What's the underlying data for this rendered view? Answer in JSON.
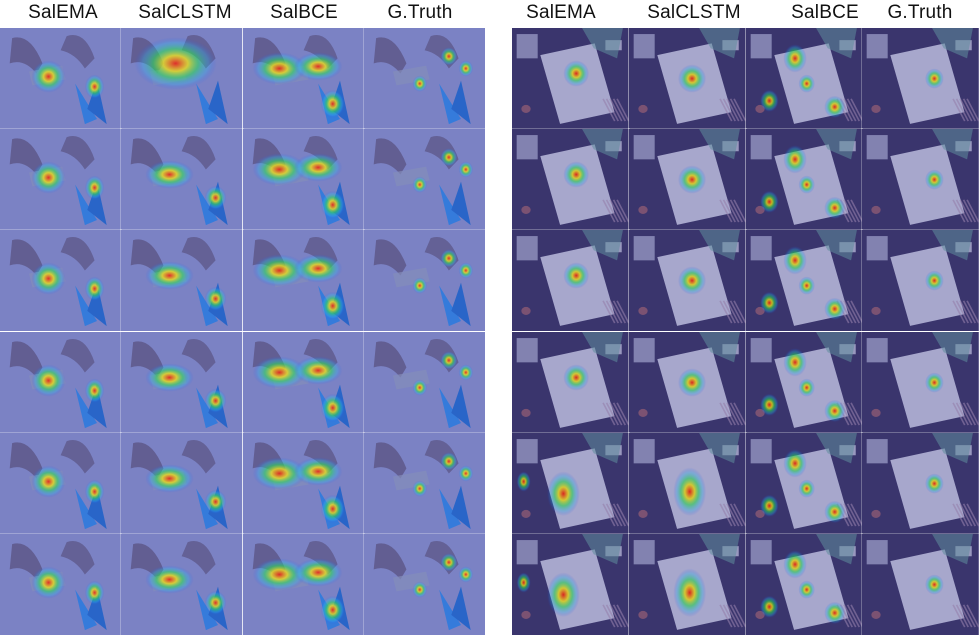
{
  "figure": {
    "left_panel": {
      "column_headers": [
        "SalEMA",
        "SalCLSTM",
        "SalBCE",
        "G.Truth"
      ],
      "row_count": 6,
      "scene": "origami paper folding with hands",
      "colors": {
        "background": "#8088c8",
        "accent_object": "#2a7de0"
      }
    },
    "right_panel": {
      "column_headers": [
        "SalEMA",
        "SalCLSTM",
        "SalBCE",
        "G.Truth"
      ],
      "row_count": 6,
      "scene": "tabletop drawing on paper",
      "colors": {
        "background": "#3a3468",
        "accent_object": "#d7d8ee"
      }
    },
    "heatmap_colormap": [
      "#0000ff",
      "#00ffff",
      "#00ff00",
      "#ffff00",
      "#ff0000"
    ]
  }
}
